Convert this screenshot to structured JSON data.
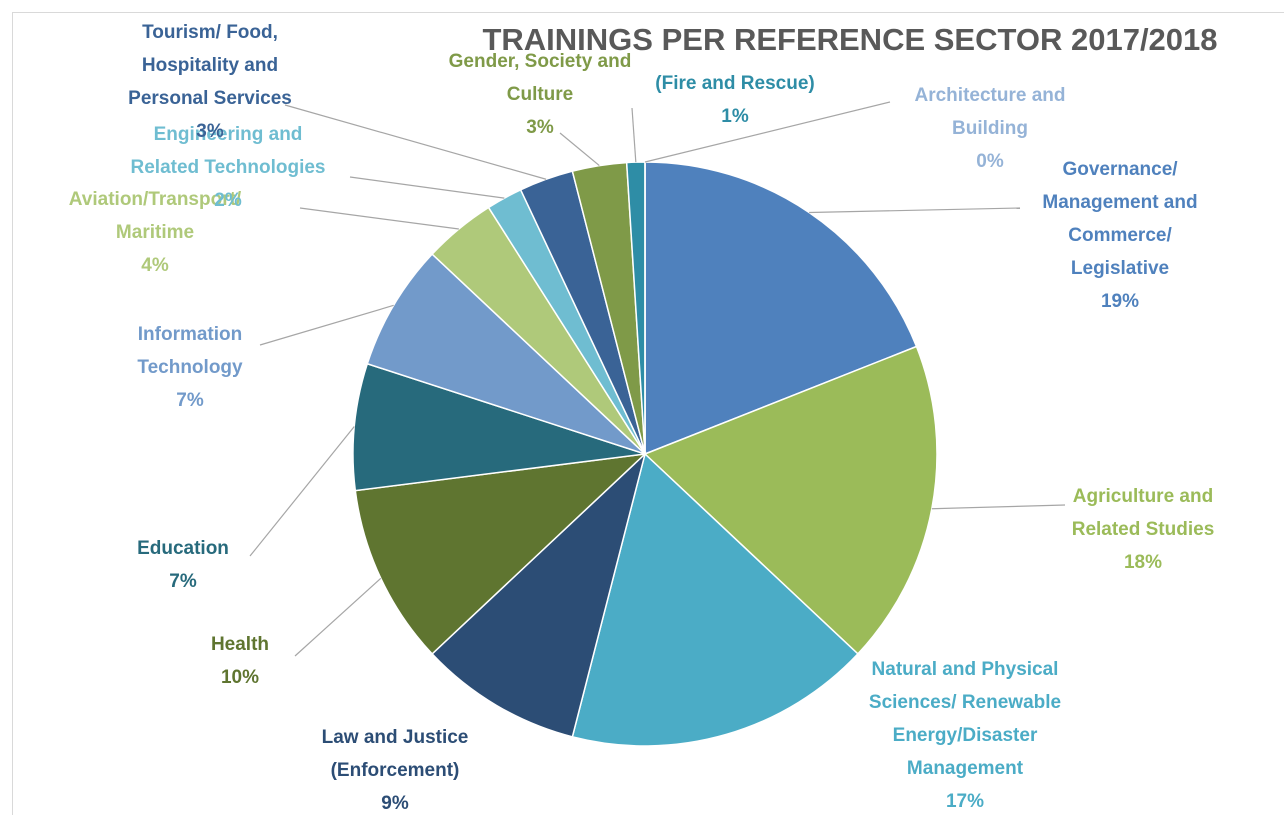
{
  "chart_data": {
    "type": "pie",
    "title": "TRAININGS PER REFERENCE SECTOR 2017/2018",
    "categories": [
      "Governance/ Management and Commerce/ Legislative",
      "Agriculture  and Related  Studies",
      "Natural and Physical Sciences/ Renewable Energy/Disaster Management",
      "Law and Justice (Enforcement)",
      "Health",
      "Education",
      "Information Technology",
      "Aviation/Transport/ Maritime",
      "Engineering and Related Technologies",
      "Tourism/ Food, Hospitality and Personal Services",
      "Gender, Society and Culture",
      "(Fire and Rescue)",
      "Architecture and Building"
    ],
    "values": [
      19,
      18,
      17,
      9,
      10,
      7,
      7,
      4,
      2,
      3,
      3,
      1,
      0
    ],
    "value_labels": [
      "19%",
      "18%",
      "17%",
      "9%",
      "10%",
      "7%",
      "7%",
      "4%",
      "2%",
      "3%",
      "3%",
      "1%",
      "0%"
    ],
    "colors": [
      "#4f81bd",
      "#9bbb59",
      "#4bacc6",
      "#2c4d75",
      "#5f7530",
      "#276a7c",
      "#729aca",
      "#afc97a",
      "#6fbdd1",
      "#3a6396",
      "#7f9a48",
      "#2e8da6",
      "#95b3d7"
    ]
  }
}
